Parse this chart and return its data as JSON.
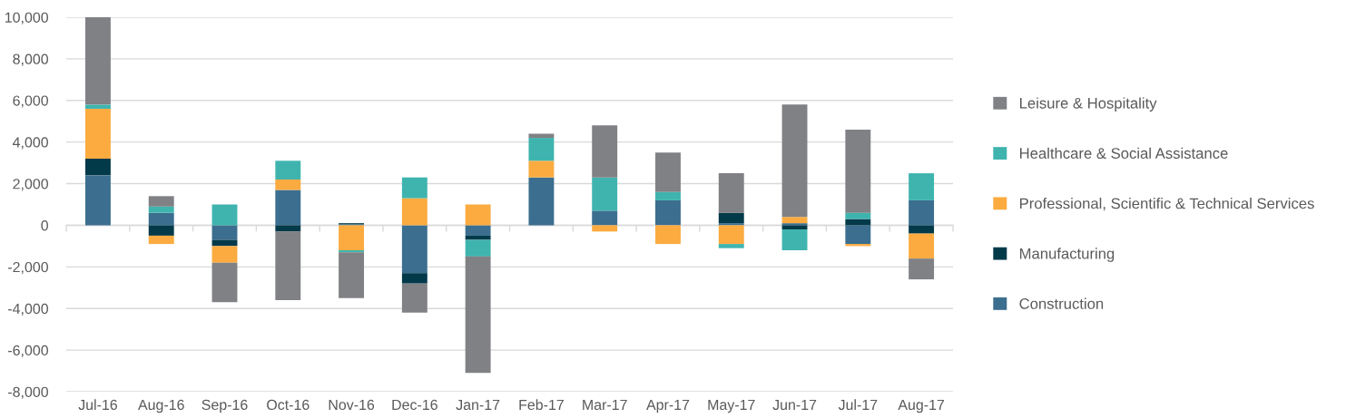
{
  "chart_data": {
    "type": "bar",
    "stacked": true,
    "categories": [
      "Jul-16",
      "Aug-16",
      "Sep-16",
      "Oct-16",
      "Nov-16",
      "Dec-16",
      "Jan-17",
      "Feb-17",
      "Mar-17",
      "Apr-17",
      "May-17",
      "Jun-17",
      "Jul-17",
      "Aug-17"
    ],
    "series": [
      {
        "name": "Construction",
        "color": "#3b6e8f",
        "values": [
          2400,
          600,
          -700,
          1700,
          50,
          -2300,
          -500,
          2300,
          700,
          1200,
          100,
          100,
          -900,
          1200
        ]
      },
      {
        "name": "Manufacturing",
        "color": "#033a4a",
        "values": [
          800,
          -500,
          -300,
          -300,
          50,
          -500,
          -200,
          null,
          null,
          null,
          500,
          -200,
          300,
          -400
        ]
      },
      {
        "name": "Professional, Scientific & Technical Services",
        "color": "#fbab40",
        "values": [
          2400,
          -400,
          -800,
          500,
          -1200,
          1300,
          1000,
          800,
          -300,
          -900,
          -900,
          300,
          -100,
          -1200
        ]
      },
      {
        "name": "Healthcare & Social Assistance",
        "color": "#3fb4ae",
        "values": [
          200,
          300,
          1000,
          900,
          -100,
          1000,
          -800,
          1100,
          1600,
          400,
          -200,
          -1000,
          300,
          1300
        ]
      },
      {
        "name": "Leisure & Hospitality",
        "color": "#808184",
        "values": [
          4200,
          500,
          -1900,
          -3300,
          -2200,
          -1400,
          -5600,
          200,
          2500,
          1900,
          1900,
          5400,
          4000,
          -1000
        ]
      }
    ],
    "ylim": [
      -8000,
      10000
    ],
    "yticks": [
      {
        "value": -8000,
        "label": "-8,000"
      },
      {
        "value": -6000,
        "label": "-6,000"
      },
      {
        "value": -4000,
        "label": "-4,000"
      },
      {
        "value": -2000,
        "label": "-2,000"
      },
      0,
      {
        "value": 2000,
        "label": "2,000"
      },
      {
        "value": 4000,
        "label": "4,000"
      },
      {
        "value": 6000,
        "label": "6,000"
      },
      {
        "value": 8000,
        "label": "8,000"
      },
      {
        "value": 10000,
        "label": "10,000"
      }
    ],
    "grid": "y",
    "legend": "right"
  }
}
